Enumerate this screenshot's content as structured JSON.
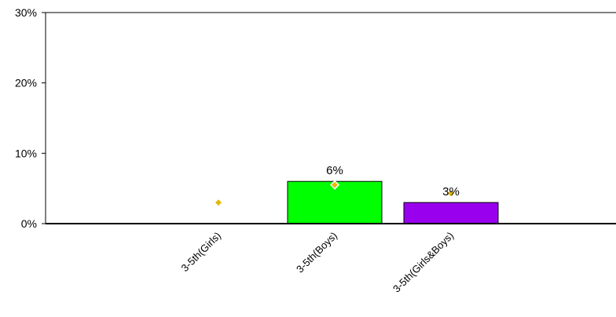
{
  "chart_data": {
    "type": "bar",
    "categories": [
      "3-5th(Girls)",
      "3-5th(Boys)",
      "3-5th(Girls&Boys)"
    ],
    "series": [
      {
        "values": [
          null,
          6,
          3
        ],
        "colors": [
          "#00ff00",
          "#00ff00",
          "#9900ee"
        ],
        "data_labels": [
          "",
          "6%",
          "3%"
        ]
      },
      {
        "type": "scatter",
        "marker": "diamond",
        "color": "#e6b800",
        "values": [
          3,
          5.5,
          4.3
        ]
      }
    ],
    "ylim": [
      0,
      30
    ],
    "yticks": [
      0,
      10,
      20,
      30
    ],
    "ytick_labels": [
      "0%",
      "10%",
      "20%",
      "30%"
    ],
    "grid": false,
    "legend": "none",
    "title": "",
    "xlabel": "",
    "ylabel": ""
  }
}
